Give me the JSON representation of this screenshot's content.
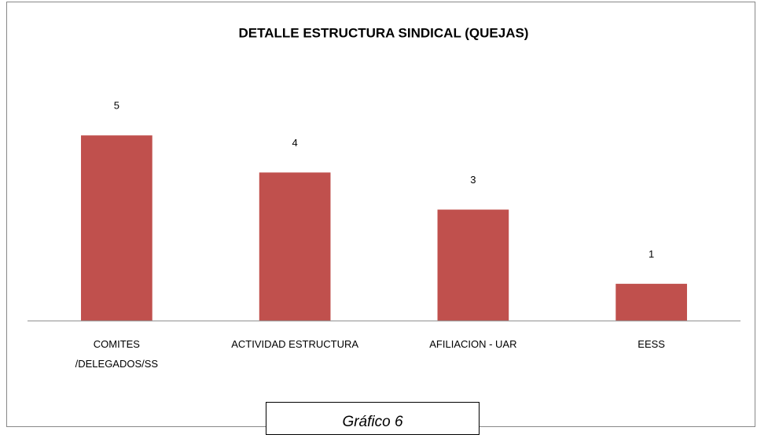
{
  "chart_data": {
    "type": "bar",
    "title": "DETALLE ESTRUCTURA SINDICAL (QUEJAS)",
    "categories": [
      "COMITES /DELEGADOS/SS",
      "ACTIVIDAD ESTRUCTURA",
      "AFILIACION - UAR",
      "EESS"
    ],
    "values": [
      5,
      4,
      3,
      1
    ],
    "color": "#c0504d",
    "ylim": [
      0,
      6
    ],
    "caption": "Gráfico 6"
  }
}
